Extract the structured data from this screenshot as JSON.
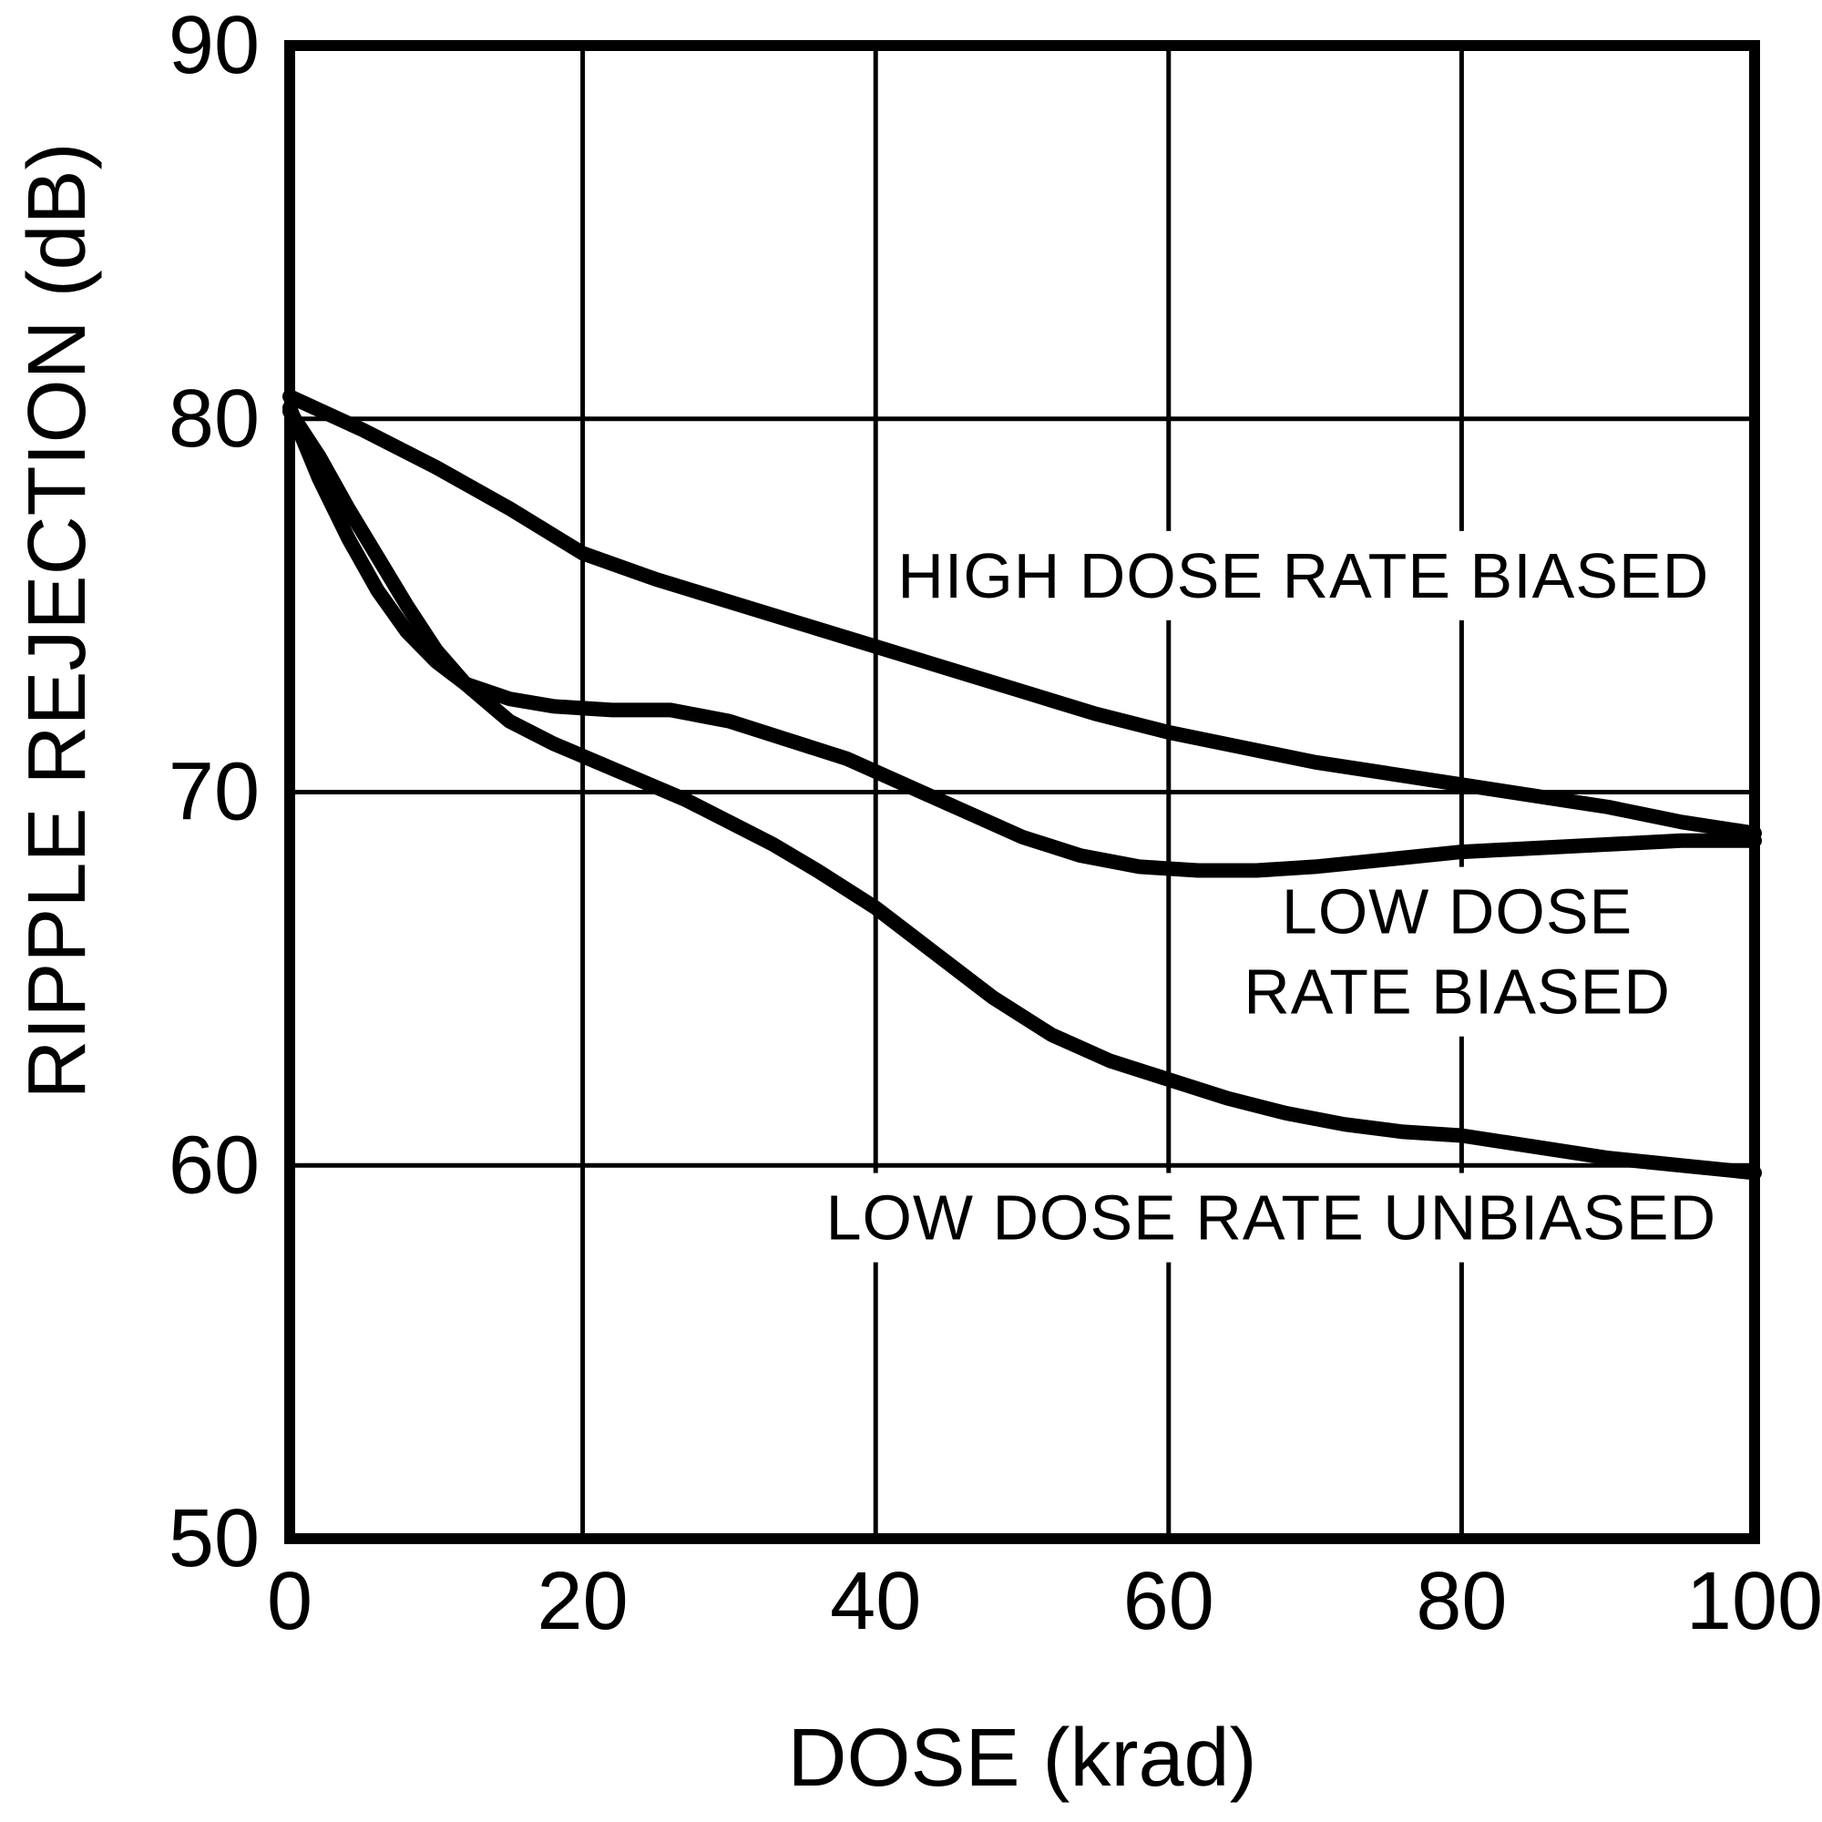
{
  "figure": {
    "background_color": "#ffffff",
    "ink_color": "#000000"
  },
  "chart_data": {
    "type": "line",
    "title": "",
    "xlabel": "DOSE (krad)",
    "ylabel": "RIPPLE REJECTION (dB)",
    "xlim": [
      0,
      100
    ],
    "ylim": [
      50,
      90
    ],
    "x_ticks": [
      0,
      20,
      40,
      60,
      80,
      100
    ],
    "y_ticks": [
      90,
      80,
      70,
      60,
      50
    ],
    "x_gridlines": [
      20,
      40,
      60,
      80
    ],
    "y_gridlines": [
      80,
      70,
      60
    ],
    "grid": true,
    "legend_position": "inline-annotations",
    "series": [
      {
        "name": "HIGH DOSE RATE BIASED",
        "points": [
          [
            0,
            80.6
          ],
          [
            5,
            79.7
          ],
          [
            10,
            78.7
          ],
          [
            15,
            77.6
          ],
          [
            20,
            76.4
          ],
          [
            25,
            75.7
          ],
          [
            30,
            75.1
          ],
          [
            35,
            74.5
          ],
          [
            40,
            73.9
          ],
          [
            45,
            73.3
          ],
          [
            50,
            72.7
          ],
          [
            55,
            72.1
          ],
          [
            60,
            71.6
          ],
          [
            65,
            71.2
          ],
          [
            70,
            70.8
          ],
          [
            75,
            70.5
          ],
          [
            80,
            70.2
          ],
          [
            85,
            69.9
          ],
          [
            90,
            69.6
          ],
          [
            95,
            69.2
          ],
          [
            100,
            68.9
          ]
        ]
      },
      {
        "name": "LOW DOSE RATE BIASED",
        "points": [
          [
            0,
            80.3
          ],
          [
            2,
            78.4
          ],
          [
            4,
            76.8
          ],
          [
            6,
            75.4
          ],
          [
            8,
            74.3
          ],
          [
            10,
            73.5
          ],
          [
            12,
            72.9
          ],
          [
            15,
            72.5
          ],
          [
            18,
            72.3
          ],
          [
            22,
            72.2
          ],
          [
            26,
            72.2
          ],
          [
            30,
            71.9
          ],
          [
            34,
            71.4
          ],
          [
            38,
            70.9
          ],
          [
            42,
            70.2
          ],
          [
            46,
            69.5
          ],
          [
            50,
            68.8
          ],
          [
            54,
            68.3
          ],
          [
            58,
            68.0
          ],
          [
            62,
            67.9
          ],
          [
            66,
            67.9
          ],
          [
            70,
            68.0
          ],
          [
            75,
            68.2
          ],
          [
            80,
            68.4
          ],
          [
            85,
            68.5
          ],
          [
            90,
            68.6
          ],
          [
            95,
            68.7
          ],
          [
            100,
            68.7
          ]
        ]
      },
      {
        "name": "LOW DOSE RATE UNBIASED",
        "points": [
          [
            0,
            80.2
          ],
          [
            2,
            79.0
          ],
          [
            4,
            77.6
          ],
          [
            6,
            76.3
          ],
          [
            8,
            75.0
          ],
          [
            10,
            73.8
          ],
          [
            12,
            72.9
          ],
          [
            15,
            71.9
          ],
          [
            18,
            71.3
          ],
          [
            21,
            70.8
          ],
          [
            24,
            70.3
          ],
          [
            27,
            69.8
          ],
          [
            30,
            69.2
          ],
          [
            33,
            68.6
          ],
          [
            36,
            67.9
          ],
          [
            40,
            66.9
          ],
          [
            44,
            65.7
          ],
          [
            48,
            64.5
          ],
          [
            52,
            63.5
          ],
          [
            56,
            62.8
          ],
          [
            60,
            62.3
          ],
          [
            64,
            61.8
          ],
          [
            68,
            61.4
          ],
          [
            72,
            61.1
          ],
          [
            76,
            60.9
          ],
          [
            80,
            60.8
          ],
          [
            85,
            60.5
          ],
          [
            90,
            60.2
          ],
          [
            95,
            60.0
          ],
          [
            100,
            59.8
          ]
        ]
      }
    ],
    "annotations": [
      {
        "label_for": "HIGH DOSE RATE BIASED",
        "lines": [
          "HIGH DOSE RATE BIASED"
        ],
        "x": 41.5,
        "y": 75.8,
        "dy_db": 2.15,
        "anchor": "start"
      },
      {
        "label_for": "LOW DOSE RATE BIASED",
        "lines": [
          "LOW DOSE",
          "RATE BIASED"
        ],
        "x": 79.7,
        "y": 66.8,
        "dy_db": 2.15,
        "anchor": "middle"
      },
      {
        "label_for": "LOW DOSE RATE UNBIASED",
        "lines": [
          "LOW DOSE RATE UNBIASED"
        ],
        "x": 67.0,
        "y": 58.6,
        "dy_db": 2.15,
        "anchor": "middle"
      }
    ]
  }
}
